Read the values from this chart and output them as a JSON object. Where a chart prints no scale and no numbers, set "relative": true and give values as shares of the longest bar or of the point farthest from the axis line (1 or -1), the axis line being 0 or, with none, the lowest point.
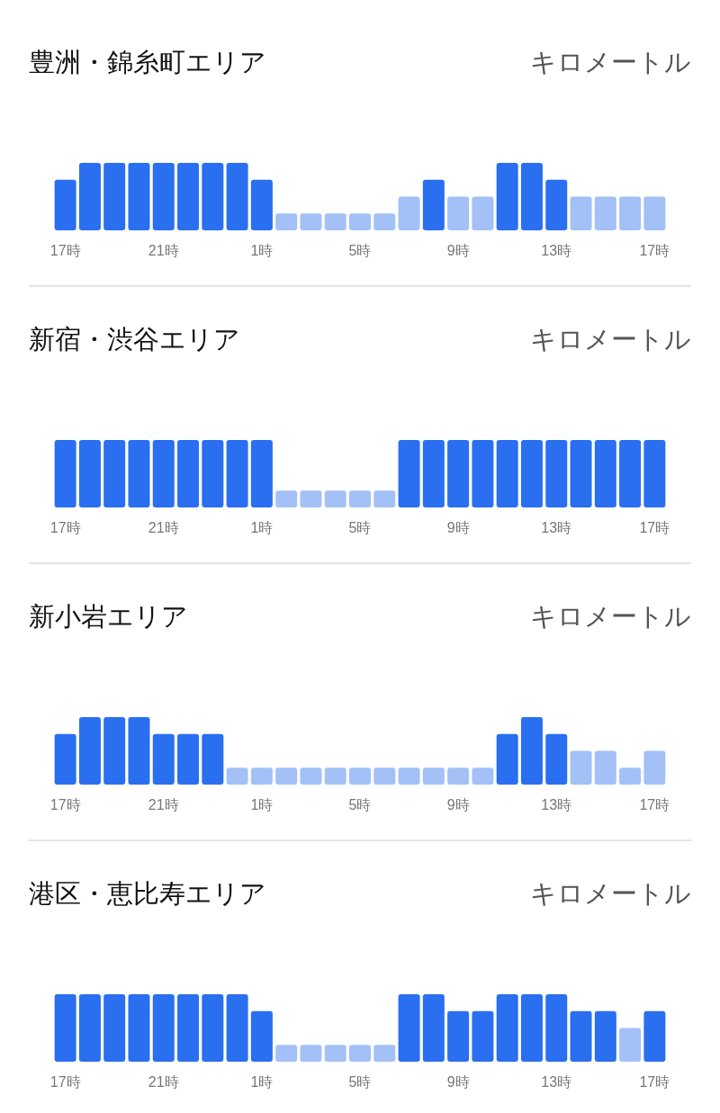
{
  "chart_data": [
    {
      "type": "bar",
      "title": "豊洲・錦糸町エリア",
      "subtitle": "キロメートル",
      "relative": true,
      "categories": [
        "17時",
        null,
        null,
        null,
        "21時",
        null,
        null,
        null,
        "1時",
        null,
        null,
        null,
        "5時",
        null,
        null,
        null,
        "9時",
        null,
        null,
        null,
        "13時",
        null,
        null,
        null,
        "17時"
      ],
      "values": [
        0.75,
        1,
        1,
        1,
        1,
        1,
        1,
        1,
        0.75,
        0.25,
        0.25,
        0.25,
        0.25,
        0.25,
        0.5,
        0.75,
        0.5,
        0.5,
        1,
        1,
        0.75,
        0.5,
        0.5,
        0.5,
        0.5
      ],
      "colors": [
        "#2a6ff0",
        "#2a6ff0",
        "#2a6ff0",
        "#2a6ff0",
        "#2a6ff0",
        "#2a6ff0",
        "#2a6ff0",
        "#2a6ff0",
        "#2a6ff0",
        "#a3c0f7",
        "#a3c0f7",
        "#a3c0f7",
        "#a3c0f7",
        "#a3c0f7",
        "#a3c0f7",
        "#2a6ff0",
        "#a3c0f7",
        "#a3c0f7",
        "#2a6ff0",
        "#2a6ff0",
        "#2a6ff0",
        "#a3c0f7",
        "#a3c0f7",
        "#a3c0f7",
        "#a3c0f7"
      ]
    },
    {
      "type": "bar",
      "title": "新宿・渋谷エリア",
      "subtitle": "キロメートル",
      "relative": true,
      "categories": [
        "17時",
        null,
        null,
        null,
        "21時",
        null,
        null,
        null,
        "1時",
        null,
        null,
        null,
        "5時",
        null,
        null,
        null,
        "9時",
        null,
        null,
        null,
        "13時",
        null,
        null,
        null,
        "17時"
      ],
      "values": [
        1,
        1,
        1,
        1,
        1,
        1,
        1,
        1,
        1,
        0.25,
        0.25,
        0.25,
        0.25,
        0.25,
        1,
        1,
        1,
        1,
        1,
        1,
        1,
        1,
        1,
        1,
        1
      ],
      "colors": [
        "#2a6ff0",
        "#2a6ff0",
        "#2a6ff0",
        "#2a6ff0",
        "#2a6ff0",
        "#2a6ff0",
        "#2a6ff0",
        "#2a6ff0",
        "#2a6ff0",
        "#a3c0f7",
        "#a3c0f7",
        "#a3c0f7",
        "#a3c0f7",
        "#a3c0f7",
        "#2a6ff0",
        "#2a6ff0",
        "#2a6ff0",
        "#2a6ff0",
        "#2a6ff0",
        "#2a6ff0",
        "#2a6ff0",
        "#2a6ff0",
        "#2a6ff0",
        "#2a6ff0",
        "#2a6ff0"
      ]
    },
    {
      "type": "bar",
      "title": "新小岩エリア",
      "subtitle": "キロメートル",
      "relative": true,
      "categories": [
        "17時",
        null,
        null,
        null,
        "21時",
        null,
        null,
        null,
        "1時",
        null,
        null,
        null,
        "5時",
        null,
        null,
        null,
        "9時",
        null,
        null,
        null,
        "13時",
        null,
        null,
        null,
        "17時"
      ],
      "values": [
        0.75,
        1,
        1,
        1,
        0.75,
        0.75,
        0.75,
        0.25,
        0.25,
        0.25,
        0.25,
        0.25,
        0.25,
        0.25,
        0.25,
        0.25,
        0.25,
        0.25,
        0.75,
        1,
        0.75,
        0.5,
        0.5,
        0.25,
        0.5
      ],
      "colors": [
        "#2a6ff0",
        "#2a6ff0",
        "#2a6ff0",
        "#2a6ff0",
        "#2a6ff0",
        "#2a6ff0",
        "#2a6ff0",
        "#a3c0f7",
        "#a3c0f7",
        "#a3c0f7",
        "#a3c0f7",
        "#a3c0f7",
        "#a3c0f7",
        "#a3c0f7",
        "#a3c0f7",
        "#a3c0f7",
        "#a3c0f7",
        "#a3c0f7",
        "#2a6ff0",
        "#2a6ff0",
        "#2a6ff0",
        "#a3c0f7",
        "#a3c0f7",
        "#a3c0f7",
        "#a3c0f7"
      ]
    },
    {
      "type": "bar",
      "title": "港区・恵比寿エリア",
      "subtitle": "キロメートル",
      "relative": true,
      "categories": [
        "17時",
        null,
        null,
        null,
        "21時",
        null,
        null,
        null,
        "1時",
        null,
        null,
        null,
        "5時",
        null,
        null,
        null,
        "9時",
        null,
        null,
        null,
        "13時",
        null,
        null,
        null,
        "17時"
      ],
      "values": [
        1,
        1,
        1,
        1,
        1,
        1,
        1,
        1,
        0.75,
        0.25,
        0.25,
        0.25,
        0.25,
        0.25,
        1,
        1,
        0.75,
        0.75,
        1,
        1,
        1,
        0.75,
        0.75,
        0.5,
        0.75
      ],
      "colors": [
        "#2a6ff0",
        "#2a6ff0",
        "#2a6ff0",
        "#2a6ff0",
        "#2a6ff0",
        "#2a6ff0",
        "#2a6ff0",
        "#2a6ff0",
        "#2a6ff0",
        "#a3c0f7",
        "#a3c0f7",
        "#a3c0f7",
        "#a3c0f7",
        "#a3c0f7",
        "#2a6ff0",
        "#2a6ff0",
        "#2a6ff0",
        "#2a6ff0",
        "#2a6ff0",
        "#2a6ff0",
        "#2a6ff0",
        "#2a6ff0",
        "#2a6ff0",
        "#a3c0f7",
        "#2a6ff0"
      ]
    }
  ]
}
